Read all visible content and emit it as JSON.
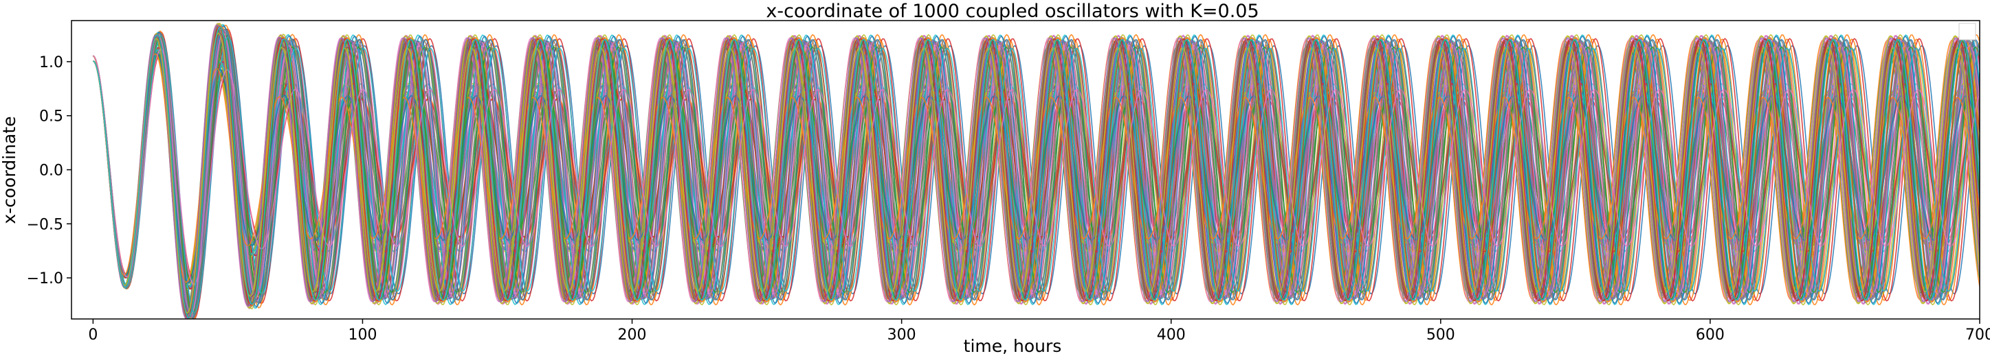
{
  "chart_data": {
    "type": "line",
    "title": "x-coordinate of 1000 coupled oscillators with K=0.05",
    "xlabel": "time, hours",
    "ylabel": "x-coordinate",
    "xlim": [
      -8,
      700
    ],
    "ylim": [
      -1.38,
      1.38
    ],
    "x_ticks": [
      0,
      100,
      200,
      300,
      400,
      500,
      600,
      700
    ],
    "y_ticks": [
      -1.0,
      -0.5,
      0.0,
      0.5,
      1.0
    ],
    "x_tick_labels": [
      "0",
      "100",
      "200",
      "300",
      "400",
      "500",
      "600",
      "700"
    ],
    "y_tick_labels": [
      "−1.0",
      "−0.5",
      "0.0",
      "0.5",
      "1.0"
    ],
    "grid": false,
    "legend": "top-right (empty)",
    "n_oscillators": 1000,
    "coupling_K": 0.05,
    "initial_value": 1.0,
    "approx_period_hours": 24,
    "envelope": {
      "outer_peak": 1.25,
      "outer_trough": -1.25,
      "inner_band": [
        -0.65,
        0.7
      ]
    },
    "series_colors": [
      "#1f77b4",
      "#ff7f0e",
      "#2ca02c",
      "#d62728",
      "#9467bd",
      "#8c564b",
      "#e377c2",
      "#7f7f7f",
      "#bcbd22",
      "#17becf"
    ]
  }
}
